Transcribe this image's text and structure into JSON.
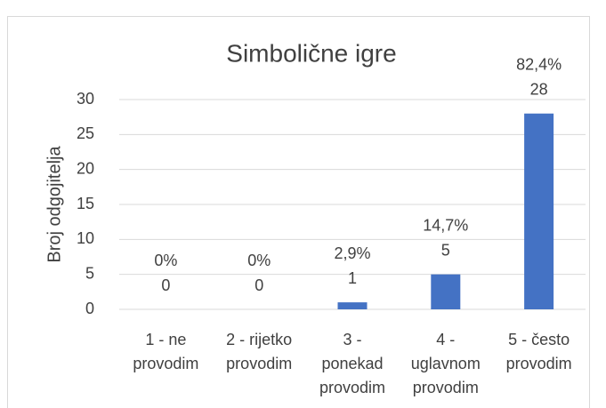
{
  "chart_data": {
    "type": "bar",
    "title": "Simbolične igre",
    "y_label": "Broj odgojitelja",
    "categories": [
      [
        "1 - ne",
        "provodim"
      ],
      [
        "2 - rijetko",
        "provodim"
      ],
      [
        "3 -",
        "ponekad",
        "provodim"
      ],
      [
        "4 -",
        "uglavnom",
        "provodim"
      ],
      [
        "5 - često",
        "provodim"
      ]
    ],
    "values": [
      0,
      0,
      1,
      5,
      28
    ],
    "percent_labels": [
      "0%",
      "0%",
      "2,9%",
      "14,7%",
      "82,4%"
    ],
    "color": "#4472c4",
    "ylim": [
      0,
      30
    ],
    "yticks": [
      0,
      5,
      10,
      15,
      20,
      25,
      30
    ],
    "grid": true
  }
}
